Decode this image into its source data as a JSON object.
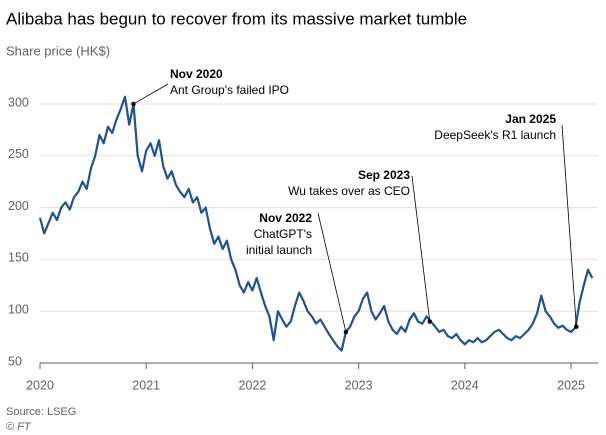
{
  "chart_data": {
    "type": "line",
    "title": "Alibaba has begun to recover from its massive market tumble",
    "subtitle": "Share price (HK$)",
    "source": "Source: LSEG",
    "credit": "© FT",
    "xlim": [
      2020,
      2025.25
    ],
    "xticks": [
      2020,
      2021,
      2022,
      2023,
      2024,
      2025
    ],
    "ylim": [
      50,
      310
    ],
    "yticks": [
      50,
      100,
      150,
      200,
      250,
      300
    ],
    "grid": true,
    "x": [
      2020.0,
      2020.04,
      2020.08,
      2020.12,
      2020.16,
      2020.2,
      2020.24,
      2020.28,
      2020.32,
      2020.36,
      2020.4,
      2020.44,
      2020.48,
      2020.52,
      2020.56,
      2020.6,
      2020.64,
      2020.68,
      2020.72,
      2020.76,
      2020.8,
      2020.84,
      2020.88,
      2020.92,
      2020.96,
      2021.0,
      2021.04,
      2021.08,
      2021.12,
      2021.16,
      2021.2,
      2021.24,
      2021.28,
      2021.32,
      2021.36,
      2021.4,
      2021.44,
      2021.48,
      2021.52,
      2021.56,
      2021.6,
      2021.64,
      2021.68,
      2021.72,
      2021.76,
      2021.8,
      2021.84,
      2021.88,
      2021.92,
      2021.96,
      2022.0,
      2022.04,
      2022.08,
      2022.12,
      2022.16,
      2022.2,
      2022.24,
      2022.28,
      2022.32,
      2022.36,
      2022.4,
      2022.44,
      2022.48,
      2022.52,
      2022.56,
      2022.6,
      2022.64,
      2022.68,
      2022.72,
      2022.76,
      2022.8,
      2022.84,
      2022.88,
      2022.92,
      2022.96,
      2023.0,
      2023.04,
      2023.08,
      2023.12,
      2023.16,
      2023.2,
      2023.24,
      2023.28,
      2023.32,
      2023.36,
      2023.4,
      2023.44,
      2023.48,
      2023.52,
      2023.56,
      2023.6,
      2023.64,
      2023.68,
      2023.72,
      2023.76,
      2023.8,
      2023.84,
      2023.88,
      2023.92,
      2023.96,
      2024.0,
      2024.04,
      2024.08,
      2024.12,
      2024.16,
      2024.2,
      2024.24,
      2024.28,
      2024.32,
      2024.36,
      2024.4,
      2024.44,
      2024.48,
      2024.52,
      2024.56,
      2024.6,
      2024.64,
      2024.68,
      2024.72,
      2024.76,
      2024.8,
      2024.84,
      2024.88,
      2024.92,
      2024.96,
      2025.0,
      2025.04,
      2025.08,
      2025.12,
      2025.16,
      2025.2
    ],
    "series": [
      {
        "name": "Share price",
        "color": "#1f5196",
        "values": [
          190,
          175,
          185,
          195,
          188,
          200,
          205,
          198,
          210,
          215,
          225,
          218,
          238,
          250,
          270,
          262,
          278,
          272,
          285,
          295,
          307,
          280,
          300,
          250,
          235,
          255,
          262,
          250,
          265,
          240,
          228,
          235,
          222,
          215,
          210,
          218,
          205,
          210,
          195,
          200,
          180,
          165,
          172,
          160,
          168,
          150,
          140,
          125,
          118,
          128,
          120,
          132,
          118,
          105,
          95,
          72,
          100,
          92,
          85,
          90,
          105,
          118,
          110,
          100,
          95,
          88,
          92,
          85,
          78,
          72,
          66,
          62,
          80,
          85,
          95,
          100,
          112,
          118,
          100,
          92,
          98,
          105,
          90,
          82,
          78,
          85,
          80,
          92,
          98,
          90,
          88,
          95,
          90,
          85,
          80,
          82,
          76,
          74,
          78,
          72,
          68,
          72,
          70,
          74,
          70,
          72,
          76,
          80,
          82,
          78,
          74,
          72,
          76,
          74,
          78,
          82,
          88,
          98,
          115,
          100,
          95,
          88,
          84,
          86,
          82,
          80,
          84,
          108,
          125,
          140,
          132
        ]
      }
    ],
    "annotations": [
      {
        "title": "Nov 2020",
        "lines": [
          "Ant Group's failed IPO"
        ],
        "x": 2020.88,
        "y": 300
      },
      {
        "title": "Nov 2022",
        "lines": [
          "ChatGPT's",
          "initial launch"
        ],
        "x": 2022.88,
        "y": 80
      },
      {
        "title": "Sep 2023",
        "lines": [
          "Wu takes over as CEO"
        ],
        "x": 2023.67,
        "y": 90
      },
      {
        "title": "Jan 2025",
        "lines": [
          "DeepSeek's R1 launch"
        ],
        "x": 2025.05,
        "y": 85
      }
    ]
  }
}
